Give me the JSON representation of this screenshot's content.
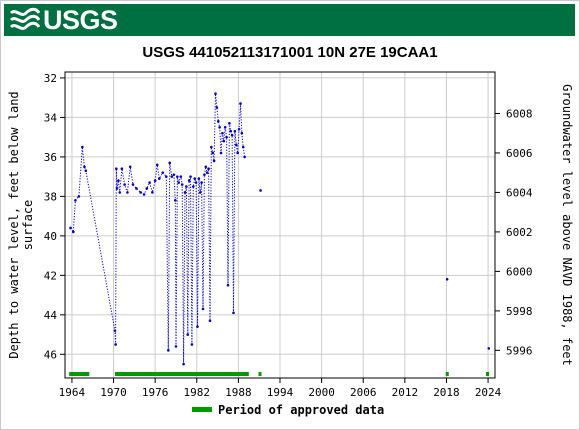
{
  "header": {
    "logo_text": "USGS",
    "logo_icon": "usgs-wave-icon",
    "banner_color": "#006f41"
  },
  "chart_data": {
    "type": "scatter",
    "title": "USGS 441052113171001 10N 27E 19CAA1",
    "ylabel_left": [
      "Depth to water level, feet below land",
      "surface"
    ],
    "ylabel_right": "Groundwater level above NAVD 1988, feet",
    "xlim": [
      1963,
      2025
    ],
    "ylim_left": [
      47.2,
      31.7
    ],
    "ylim_right": [
      5994.6,
      6010.1
    ],
    "yaxis_left_inverted": true,
    "x_ticks": [
      "1964",
      "1970",
      "1976",
      "1982",
      "1988",
      "1994",
      "2000",
      "2006",
      "2012",
      "2018",
      "2024"
    ],
    "y_ticks_left": [
      "32",
      "34",
      "36",
      "38",
      "40",
      "42",
      "44",
      "46"
    ],
    "y_ticks_right": [
      "5996",
      "5998",
      "6000",
      "6002",
      "6004",
      "6006",
      "6008"
    ],
    "grid": true,
    "series": [
      {
        "color": "#0000cc",
        "connected": true,
        "points": [
          [
            1963.8,
            39.6
          ],
          [
            1964.2,
            39.8
          ],
          [
            1964.5,
            38.2
          ],
          [
            1965.0,
            38.0
          ],
          [
            1965.5,
            35.5
          ],
          [
            1965.8,
            36.5
          ],
          [
            1966.0,
            36.7
          ],
          [
            1970.2,
            44.8
          ],
          [
            1970.3,
            45.5
          ],
          [
            1970.4,
            36.6
          ],
          [
            1970.5,
            37.6
          ],
          [
            1970.7,
            37.2
          ],
          [
            1970.9,
            37.8
          ],
          [
            1971.2,
            36.6
          ],
          [
            1971.6,
            37.4
          ],
          [
            1972.0,
            37.8
          ],
          [
            1972.4,
            36.5
          ],
          [
            1972.8,
            37.4
          ],
          [
            1973.3,
            37.6
          ],
          [
            1973.9,
            37.8
          ],
          [
            1974.4,
            37.9
          ],
          [
            1974.8,
            37.6
          ],
          [
            1975.2,
            37.3
          ],
          [
            1975.6,
            37.8
          ],
          [
            1976.0,
            37.2
          ],
          [
            1976.3,
            36.4
          ],
          [
            1976.6,
            37.1
          ],
          [
            1977.1,
            36.8
          ],
          [
            1977.6,
            37.0
          ],
          [
            1977.9,
            45.8
          ],
          [
            1978.1,
            36.3
          ],
          [
            1978.4,
            37.0
          ],
          [
            1978.7,
            36.9
          ],
          [
            1978.9,
            38.2
          ],
          [
            1979.0,
            45.6
          ],
          [
            1979.2,
            37.0
          ],
          [
            1979.4,
            37.3
          ],
          [
            1979.7,
            37.0
          ],
          [
            1979.9,
            37.4
          ],
          [
            1980.1,
            46.5
          ],
          [
            1980.3,
            37.8
          ],
          [
            1980.5,
            37.5
          ],
          [
            1980.7,
            45.0
          ],
          [
            1980.9,
            37.2
          ],
          [
            1981.1,
            37.0
          ],
          [
            1981.3,
            45.5
          ],
          [
            1981.5,
            37.5
          ],
          [
            1981.7,
            37.1
          ],
          [
            1981.9,
            37.3
          ],
          [
            1982.1,
            44.6
          ],
          [
            1982.3,
            37.1
          ],
          [
            1982.5,
            37.8
          ],
          [
            1982.7,
            37.3
          ],
          [
            1982.9,
            43.7
          ],
          [
            1983.1,
            36.9
          ],
          [
            1983.3,
            36.5
          ],
          [
            1983.5,
            36.8
          ],
          [
            1983.7,
            36.6
          ],
          [
            1983.9,
            44.3
          ],
          [
            1984.1,
            35.5
          ],
          [
            1984.3,
            35.8
          ],
          [
            1984.5,
            36.2
          ],
          [
            1984.7,
            32.8
          ],
          [
            1984.9,
            33.5
          ],
          [
            1985.1,
            34.2
          ],
          [
            1985.3,
            34.5
          ],
          [
            1985.5,
            35.8
          ],
          [
            1985.7,
            34.8
          ],
          [
            1985.9,
            35.2
          ],
          [
            1986.1,
            34.5
          ],
          [
            1986.3,
            35.0
          ],
          [
            1986.5,
            42.5
          ],
          [
            1986.7,
            34.3
          ],
          [
            1986.9,
            34.7
          ],
          [
            1987.1,
            34.9
          ],
          [
            1987.3,
            43.9
          ],
          [
            1987.5,
            34.7
          ],
          [
            1987.7,
            35.4
          ],
          [
            1987.9,
            35.8
          ],
          [
            1988.1,
            34.6
          ],
          [
            1988.3,
            33.3
          ],
          [
            1988.5,
            34.8
          ],
          [
            1988.7,
            35.5
          ],
          [
            1988.9,
            36.0
          ]
        ]
      },
      {
        "color": "#0000cc",
        "connected": false,
        "points": [
          [
            1991.2,
            37.7
          ],
          [
            2018.1,
            42.2
          ],
          [
            2024.1,
            45.7
          ]
        ]
      }
    ],
    "approved_periods": [
      [
        1963.6,
        1966.5
      ],
      [
        1970.2,
        1989.5
      ],
      [
        1990.9,
        1991.3
      ],
      [
        2017.9,
        2018.3
      ],
      [
        2023.7,
        2024.1
      ]
    ],
    "approved_color": "#009900",
    "legend": {
      "label": "Period of approved data",
      "placement": "bottom-center"
    }
  }
}
